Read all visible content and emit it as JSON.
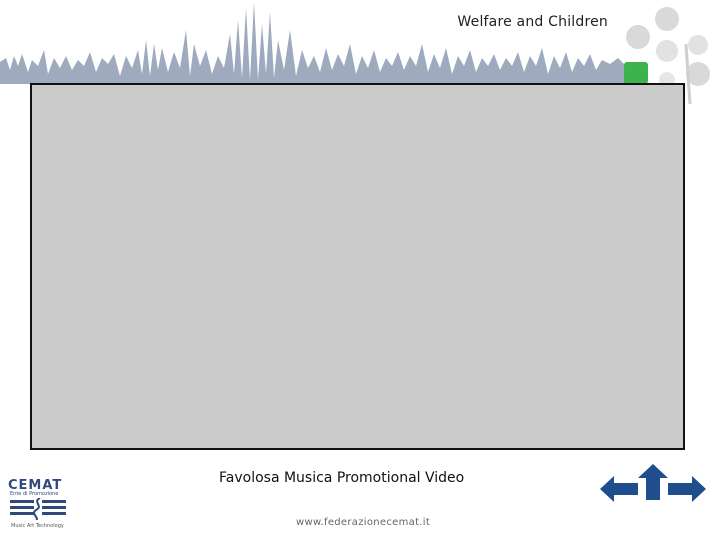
{
  "header": {
    "title": "Welfare and Children"
  },
  "main": {
    "caption": "Favolosa Musica Promotional Video"
  },
  "footer": {
    "url": "www.federazionecemat.it"
  },
  "logo": {
    "title": "CEMAT",
    "subtitle": "Ente di Promozione",
    "tagline": "Music Art Technology"
  },
  "navigation": {
    "back_icon": "arrow-left-icon",
    "home_icon": "arrow-up-icon",
    "next_icon": "arrow-right-icon"
  },
  "colors": {
    "wave": "#8e9bb4",
    "accent_green": "#3cb44b",
    "dot_gray": "#d9d9d9",
    "nav_blue": "#1f4e8c",
    "video_bg": "#cbcbcb"
  }
}
